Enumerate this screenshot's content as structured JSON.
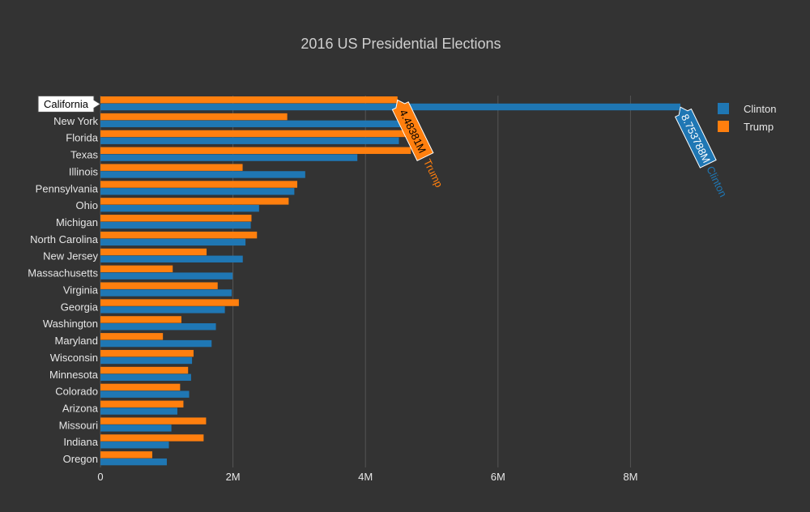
{
  "chart_data": {
    "type": "bar",
    "orientation": "horizontal",
    "title": "2016 US Presidential Elections",
    "xlabel": "",
    "ylabel": "",
    "xlim": [
      0,
      8900000
    ],
    "x_ticks": [
      0,
      2000000,
      4000000,
      6000000,
      8000000
    ],
    "x_tick_labels": [
      "0",
      "2M",
      "4M",
      "6M",
      "8M"
    ],
    "grid": true,
    "legend_position": "top-right",
    "categories": [
      "California",
      "New York",
      "Florida",
      "Texas",
      "Illinois",
      "Pennsylvania",
      "Ohio",
      "Michigan",
      "North Carolina",
      "New Jersey",
      "Massachusetts",
      "Virginia",
      "Georgia",
      "Washington",
      "Maryland",
      "Wisconsin",
      "Minnesota",
      "Colorado",
      "Arizona",
      "Missouri",
      "Indiana",
      "Oregon"
    ],
    "series": [
      {
        "name": "Clinton",
        "color": "#1f77b4",
        "values": [
          8753788,
          4556124,
          4504975,
          3877868,
          3090729,
          2926441,
          2394164,
          2268839,
          2189316,
          2148278,
          1995196,
          1981473,
          1877963,
          1742718,
          1677928,
          1382536,
          1367716,
          1338870,
          1161167,
          1071068,
          1033126,
          1002106
        ]
      },
      {
        "name": "Trump",
        "color": "#ff7f0e",
        "values": [
          4483810,
          2819534,
          4617886,
          4685047,
          2146015,
          2970733,
          2841005,
          2279543,
          2362631,
          1601933,
          1090893,
          1769443,
          2089104,
          1221747,
          943169,
          1405284,
          1322951,
          1202484,
          1252401,
          1594511,
          1557286,
          782403
        ]
      }
    ],
    "hover": {
      "category_label": "California",
      "tooltips": [
        {
          "series": "Trump",
          "value_text": "4.48381M",
          "name_text": "Trump"
        },
        {
          "series": "Clinton",
          "value_text": "8.753788M",
          "name_text": "Clinton"
        }
      ]
    }
  }
}
